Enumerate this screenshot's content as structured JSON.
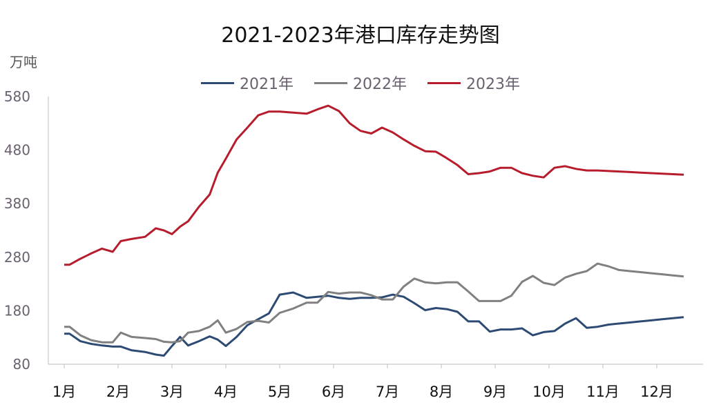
{
  "chart_data": {
    "type": "line",
    "title": "2021-2023年港口库存走势图",
    "ylabel": "万吨",
    "xlabel": "",
    "ylim": [
      80,
      580
    ],
    "yticks": [
      80,
      180,
      280,
      380,
      480,
      580
    ],
    "categories": [
      "1月",
      "2月",
      "3月",
      "4月",
      "5月",
      "6月",
      "7月",
      "8月",
      "9月",
      "10月",
      "11月",
      "12月"
    ],
    "legend_position": "top-center",
    "grid": false,
    "series": [
      {
        "name": "2021年",
        "color": "#2c4a73",
        "x": [
          0,
          0.1,
          0.3,
          0.5,
          0.7,
          0.9,
          1.05,
          1.25,
          1.5,
          1.7,
          1.85,
          2.0,
          2.15,
          2.3,
          2.5,
          2.7,
          2.85,
          3.0,
          3.2,
          3.4,
          3.6,
          3.8,
          4.0,
          4.25,
          4.5,
          4.7,
          4.9,
          5.1,
          5.3,
          5.5,
          5.7,
          5.9,
          6.1,
          6.3,
          6.5,
          6.7,
          6.9,
          7.1,
          7.3,
          7.5,
          7.7,
          7.9,
          8.1,
          8.3,
          8.5,
          8.7,
          8.9,
          9.1,
          9.3,
          9.5,
          9.7,
          9.9,
          10.1,
          10.3,
          10.5,
          10.7,
          10.9,
          11.1,
          11.3,
          11.5
        ],
        "values": [
          137,
          137,
          123,
          118,
          115,
          113,
          113,
          106,
          103,
          98,
          96,
          114,
          131,
          115,
          123,
          132,
          126,
          114,
          131,
          153,
          164,
          175,
          210,
          214,
          204,
          206,
          208,
          204,
          202,
          204,
          204,
          205,
          210,
          206,
          194,
          181,
          185,
          183,
          178,
          160,
          160,
          141,
          145,
          145,
          147,
          134,
          140,
          142,
          156,
          166,
          148,
          150,
          154,
          156,
          158,
          160,
          162,
          164,
          166,
          168
        ]
      },
      {
        "name": "2022年",
        "color": "#808080",
        "x": [
          0,
          0.1,
          0.3,
          0.5,
          0.7,
          0.9,
          1.05,
          1.25,
          1.5,
          1.7,
          1.85,
          2.0,
          2.15,
          2.3,
          2.5,
          2.7,
          2.85,
          3.0,
          3.2,
          3.4,
          3.6,
          3.8,
          4.0,
          4.25,
          4.5,
          4.7,
          4.9,
          5.1,
          5.3,
          5.5,
          5.7,
          5.9,
          6.1,
          6.3,
          6.5,
          6.7,
          6.9,
          7.1,
          7.3,
          7.5,
          7.7,
          7.9,
          8.1,
          8.3,
          8.5,
          8.7,
          8.9,
          9.1,
          9.3,
          9.5,
          9.7,
          9.9,
          10.1,
          10.3,
          10.5,
          10.7,
          10.9,
          11.1,
          11.3,
          11.5
        ],
        "values": [
          150,
          150,
          134,
          125,
          121,
          121,
          139,
          131,
          129,
          127,
          122,
          121,
          123,
          139,
          142,
          150,
          162,
          139,
          146,
          159,
          161,
          158,
          176,
          184,
          195,
          195,
          215,
          212,
          214,
          214,
          209,
          201,
          201,
          225,
          240,
          233,
          231,
          233,
          233,
          216,
          198,
          198,
          198,
          208,
          234,
          245,
          232,
          228,
          242,
          249,
          254,
          268,
          263,
          256,
          254,
          252,
          250,
          248,
          246,
          244
        ]
      },
      {
        "name": "2023年",
        "color": "#b71c2c",
        "x": [
          0,
          0.1,
          0.3,
          0.5,
          0.7,
          0.9,
          1.05,
          1.25,
          1.5,
          1.7,
          1.85,
          2.0,
          2.15,
          2.3,
          2.5,
          2.7,
          2.85,
          3.0,
          3.2,
          3.4,
          3.6,
          3.8,
          4.0,
          4.25,
          4.5,
          4.7,
          4.9,
          5.1,
          5.3,
          5.5,
          5.7,
          5.9,
          6.1,
          6.3,
          6.5,
          6.7,
          6.9,
          7.1,
          7.3,
          7.5,
          7.7,
          7.9,
          8.1,
          8.3,
          8.5,
          8.7,
          8.9,
          9.1,
          9.3,
          9.5,
          9.7,
          9.9,
          10.1,
          10.3,
          10.5,
          10.7,
          10.9,
          11.1,
          11.3,
          11.5
        ],
        "values": [
          266,
          266,
          277,
          287,
          296,
          290,
          310,
          314,
          318,
          334,
          330,
          323,
          337,
          347,
          374,
          397,
          438,
          464,
          500,
          522,
          545,
          552,
          552,
          550,
          548,
          556,
          563,
          553,
          530,
          516,
          511,
          522,
          513,
          500,
          488,
          478,
          477,
          465,
          452,
          435,
          437,
          440,
          447,
          447,
          437,
          432,
          429,
          447,
          450,
          445,
          442,
          442,
          441,
          440,
          439,
          438,
          437,
          436,
          435,
          434
        ]
      }
    ]
  }
}
